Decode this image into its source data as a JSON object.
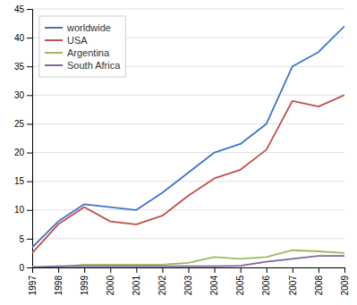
{
  "chart_data": {
    "type": "line",
    "x": [
      1997,
      1998,
      1999,
      2000,
      2001,
      2002,
      2003,
      2004,
      2005,
      2006,
      2007,
      2008,
      2009
    ],
    "series": [
      {
        "name": "worldwide",
        "color": "#4472C4",
        "values": [
          3.5,
          8.0,
          11.0,
          10.5,
          10.0,
          13.0,
          16.5,
          20.0,
          21.5,
          25.0,
          35.0,
          37.5,
          42.0
        ]
      },
      {
        "name": "USA",
        "color": "#C0504D",
        "values": [
          2.5,
          7.5,
          10.5,
          8.0,
          7.5,
          9.0,
          12.5,
          15.5,
          17.0,
          20.5,
          29.0,
          28.0,
          30.0
        ]
      },
      {
        "name": "Argentina",
        "color": "#9BBB59",
        "values": [
          0.1,
          0.1,
          0.5,
          0.5,
          0.5,
          0.5,
          0.8,
          1.8,
          1.5,
          1.8,
          3.0,
          2.8,
          2.5
        ]
      },
      {
        "name": "South Africa",
        "color": "#8064A2",
        "values": [
          0.0,
          0.2,
          0.2,
          0.2,
          0.2,
          0.2,
          0.2,
          0.2,
          0.3,
          1.0,
          1.5,
          2.0,
          2.0
        ]
      }
    ],
    "xlim": [
      1997,
      2009
    ],
    "xticks": [
      1997,
      1998,
      1999,
      2000,
      2001,
      2002,
      2003,
      2004,
      2005,
      2006,
      2007,
      2008,
      2009
    ],
    "ylim": [
      0,
      45
    ],
    "yticks": [
      0,
      5,
      10,
      15,
      20,
      25,
      30,
      35,
      40,
      45
    ],
    "grid": "y",
    "legend": "upper left"
  }
}
